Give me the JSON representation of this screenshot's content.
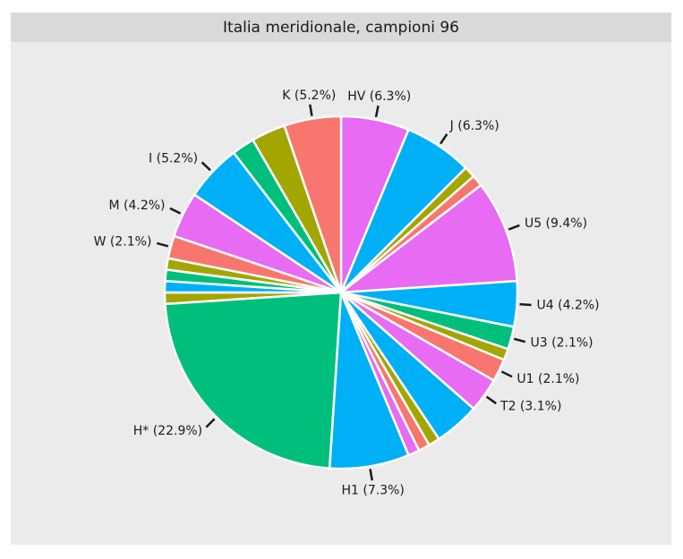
{
  "chart_data": {
    "type": "pie",
    "title": "Italia meridionale, campioni 96",
    "slices": [
      {
        "name": "HV",
        "value": 6.25,
        "color": "#E76BF3",
        "label": "HV (6.3%)"
      },
      {
        "name": "J",
        "value": 6.25,
        "color": "#00B0F6",
        "label": "J (6.3%)"
      },
      {
        "name": "",
        "value": 1.04,
        "color": "#A3A500",
        "label": ""
      },
      {
        "name": "",
        "value": 1.04,
        "color": "#F8766D",
        "label": ""
      },
      {
        "name": "U5",
        "value": 9.38,
        "color": "#E76BF3",
        "label": "U5 (9.4%)"
      },
      {
        "name": "U4",
        "value": 4.17,
        "color": "#00B0F6",
        "label": "U4 (4.2%)"
      },
      {
        "name": "U3",
        "value": 2.08,
        "color": "#00BF7D",
        "label": "U3 (2.1%)"
      },
      {
        "name": "",
        "value": 1.04,
        "color": "#A3A500",
        "label": ""
      },
      {
        "name": "U1",
        "value": 2.08,
        "color": "#F8766D",
        "label": "U1 (2.1%)"
      },
      {
        "name": "T2",
        "value": 3.13,
        "color": "#E76BF3",
        "label": "T2 (3.1%)"
      },
      {
        "name": "",
        "value": 4.17,
        "color": "#00B0F6",
        "label": ""
      },
      {
        "name": "",
        "value": 1.04,
        "color": "#A3A500",
        "label": ""
      },
      {
        "name": "",
        "value": 1.04,
        "color": "#F8766D",
        "label": ""
      },
      {
        "name": "",
        "value": 1.04,
        "color": "#E76BF3",
        "label": ""
      },
      {
        "name": "H1",
        "value": 7.29,
        "color": "#00B0F6",
        "label": "H1 (7.3%)"
      },
      {
        "name": "H*",
        "value": 22.92,
        "color": "#00BF7D",
        "label": "H* (22.9%)"
      },
      {
        "name": "",
        "value": 1.04,
        "color": "#A3A500",
        "label": ""
      },
      {
        "name": "",
        "value": 1.04,
        "color": "#00B0F6",
        "label": ""
      },
      {
        "name": "",
        "value": 1.04,
        "color": "#00BF7D",
        "label": ""
      },
      {
        "name": "",
        "value": 1.04,
        "color": "#A3A500",
        "label": ""
      },
      {
        "name": "W",
        "value": 2.08,
        "color": "#F8766D",
        "label": "W (2.1%)"
      },
      {
        "name": "M",
        "value": 4.17,
        "color": "#E76BF3",
        "label": "M (4.2%)"
      },
      {
        "name": "I",
        "value": 5.21,
        "color": "#00B0F6",
        "label": "I (5.2%)"
      },
      {
        "name": "",
        "value": 2.08,
        "color": "#00BF7D",
        "label": ""
      },
      {
        "name": "",
        "value": 3.13,
        "color": "#A3A500",
        "label": ""
      },
      {
        "name": "K",
        "value": 5.21,
        "color": "#F8766D",
        "label": "K (5.2%)"
      }
    ],
    "start": "12 o'clock",
    "direction": "clockwise",
    "legend": "none"
  }
}
